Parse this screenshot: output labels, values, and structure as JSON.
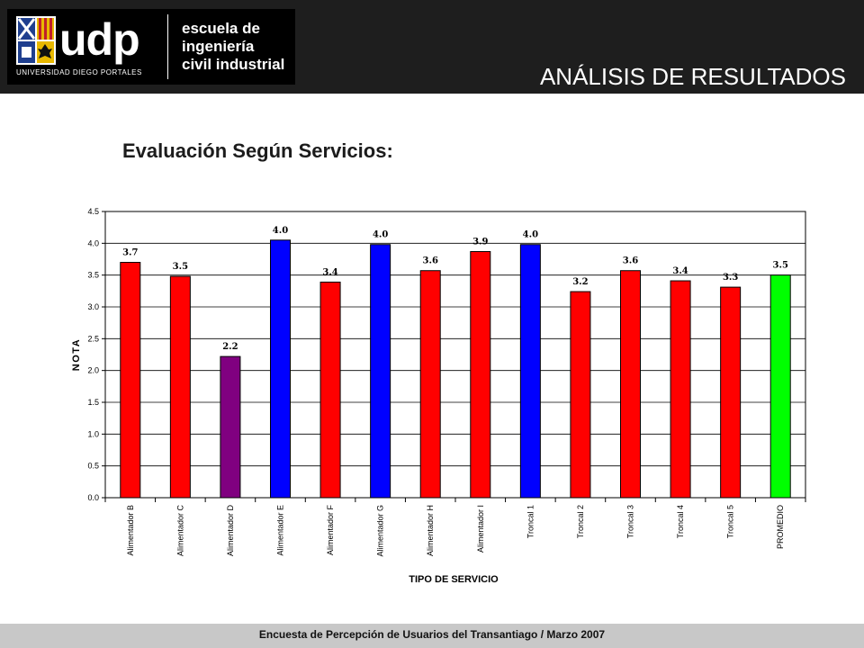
{
  "header": {
    "logo_text": "udp",
    "university": "UNIVERSIDAD DIEGO PORTALES",
    "school_lines": [
      "escuela de",
      "ingeniería",
      "civil industrial"
    ],
    "page_title": "ANÁLISIS DE RESULTADOS"
  },
  "section_title": "Evaluación Según Servicios:",
  "footer": "Encuesta de Percepción de Usuarios del Transantiago  / Marzo 2007",
  "chart_data": {
    "type": "bar",
    "title": "",
    "xlabel": "TIPO DE SERVICIO",
    "ylabel": "NOTA",
    "ylim": [
      0,
      4.5
    ],
    "yticks": [
      "0.0",
      "0.5",
      "1.0",
      "1.5",
      "2.0",
      "2.5",
      "3.0",
      "3.5",
      "4.0",
      "4.5"
    ],
    "grid": true,
    "categories": [
      "Alimentador B",
      "Alimentador C",
      "Alimentador D",
      "Alimentador E",
      "Alimentador F",
      "Alimentador G",
      "Alimentador H",
      "Alimentador I",
      "Troncal 1",
      "Troncal 2",
      "Troncal 3",
      "Troncal 4",
      "Troncal 5",
      "PROMEDIO"
    ],
    "values": [
      3.7,
      3.48,
      2.22,
      4.05,
      3.39,
      3.98,
      3.57,
      3.87,
      3.98,
      3.24,
      3.57,
      3.41,
      3.31,
      3.5
    ],
    "data_labels": [
      "3.7",
      "3.5",
      "2.2",
      "4.0",
      "3.4",
      "4.0",
      "3.6",
      "3.9",
      "4.0",
      "3.2",
      "3.6",
      "3.4",
      "3.3",
      "3.5"
    ],
    "colors": [
      "#ff0000",
      "#ff0000",
      "#800080",
      "#0000ff",
      "#ff0000",
      "#0000ff",
      "#ff0000",
      "#ff0000",
      "#0000ff",
      "#ff0000",
      "#ff0000",
      "#ff0000",
      "#ff0000",
      "#00ff00"
    ]
  }
}
